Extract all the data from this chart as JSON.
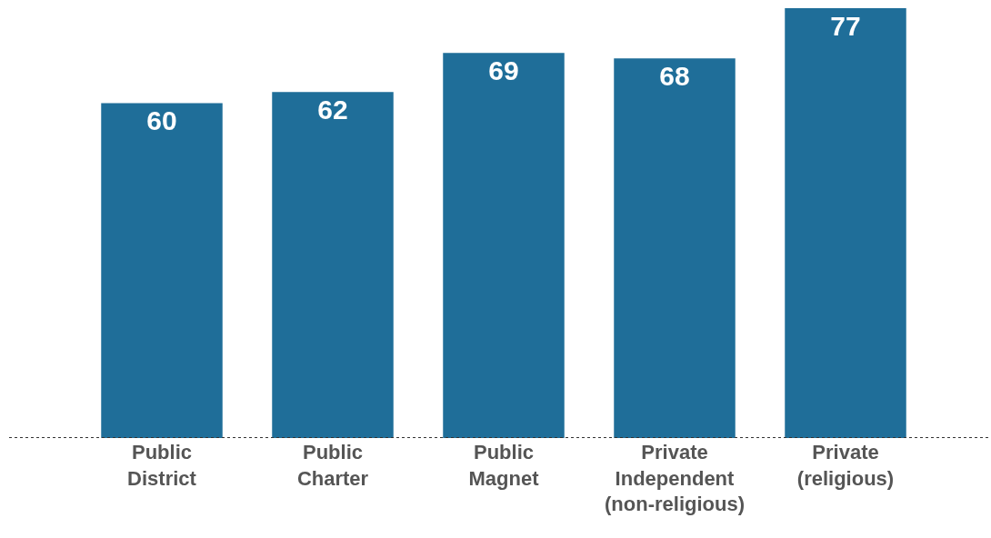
{
  "chart_data": {
    "type": "bar",
    "categories": [
      "Public District",
      "Public Charter",
      "Public Magnet",
      "Private Independent (non-religious)",
      "Private (religious)"
    ],
    "values": [
      60,
      62,
      69,
      68,
      77
    ],
    "color": "#1f6e99",
    "data_labels": true,
    "tick_labels": "x"
  }
}
